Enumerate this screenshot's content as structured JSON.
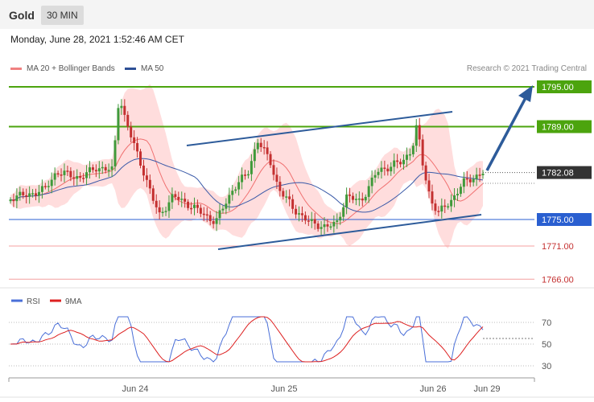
{
  "header": {
    "symbol": "Gold",
    "timeframe": "30 MIN",
    "datetime": "Monday, June 28, 2021 1:52:46 AM CET"
  },
  "legend": {
    "ma20": "MA 20 + Bollinger Bands",
    "ma50": "MA 50",
    "credit": "Research © 2021 Trading Central"
  },
  "rsi_legend": {
    "rsi": "RSI",
    "ma9": "9MA"
  },
  "colors": {
    "up": "#3f9a3a",
    "down": "#c43030",
    "bands": "#ffd5d5",
    "ma20": "#f07070",
    "ma50": "#3a5aa8",
    "resistance": "#4ca40e",
    "support": "#2a5fd0",
    "weak_level": "#f4a0a0",
    "channel": "#2d5b9a",
    "rsi": "#4a6fd8",
    "rsi_ma": "#dd2020"
  },
  "chart_data": {
    "type": "candlestick",
    "title": "Gold",
    "timeframe": "30 MIN",
    "x_ticks": [
      "Jun 24",
      "Jun 25",
      "Jun 26",
      "Jun 29"
    ],
    "price_ylim": [
      1764,
      1798
    ],
    "levels": [
      {
        "label": "1795.00",
        "value": 1795.0,
        "style": "resistance"
      },
      {
        "label": "1789.00",
        "value": 1789.0,
        "style": "resistance"
      },
      {
        "label": "1782.08",
        "value": 1782.08,
        "style": "last-price"
      },
      {
        "label": "1775.00",
        "value": 1775.0,
        "style": "support"
      },
      {
        "label": "1771.00",
        "value": 1771.0,
        "style": "weak"
      },
      {
        "label": "1766.00",
        "value": 1766.0,
        "style": "weak"
      }
    ],
    "series": [
      {
        "name": "MA 20 + Bollinger Bands"
      },
      {
        "name": "MA 50"
      },
      {
        "name": "RSI"
      },
      {
        "name": "9MA"
      }
    ],
    "rsi_ticks": [
      "70",
      "50",
      "30"
    ],
    "rsi_ylim": [
      20,
      85
    ]
  }
}
